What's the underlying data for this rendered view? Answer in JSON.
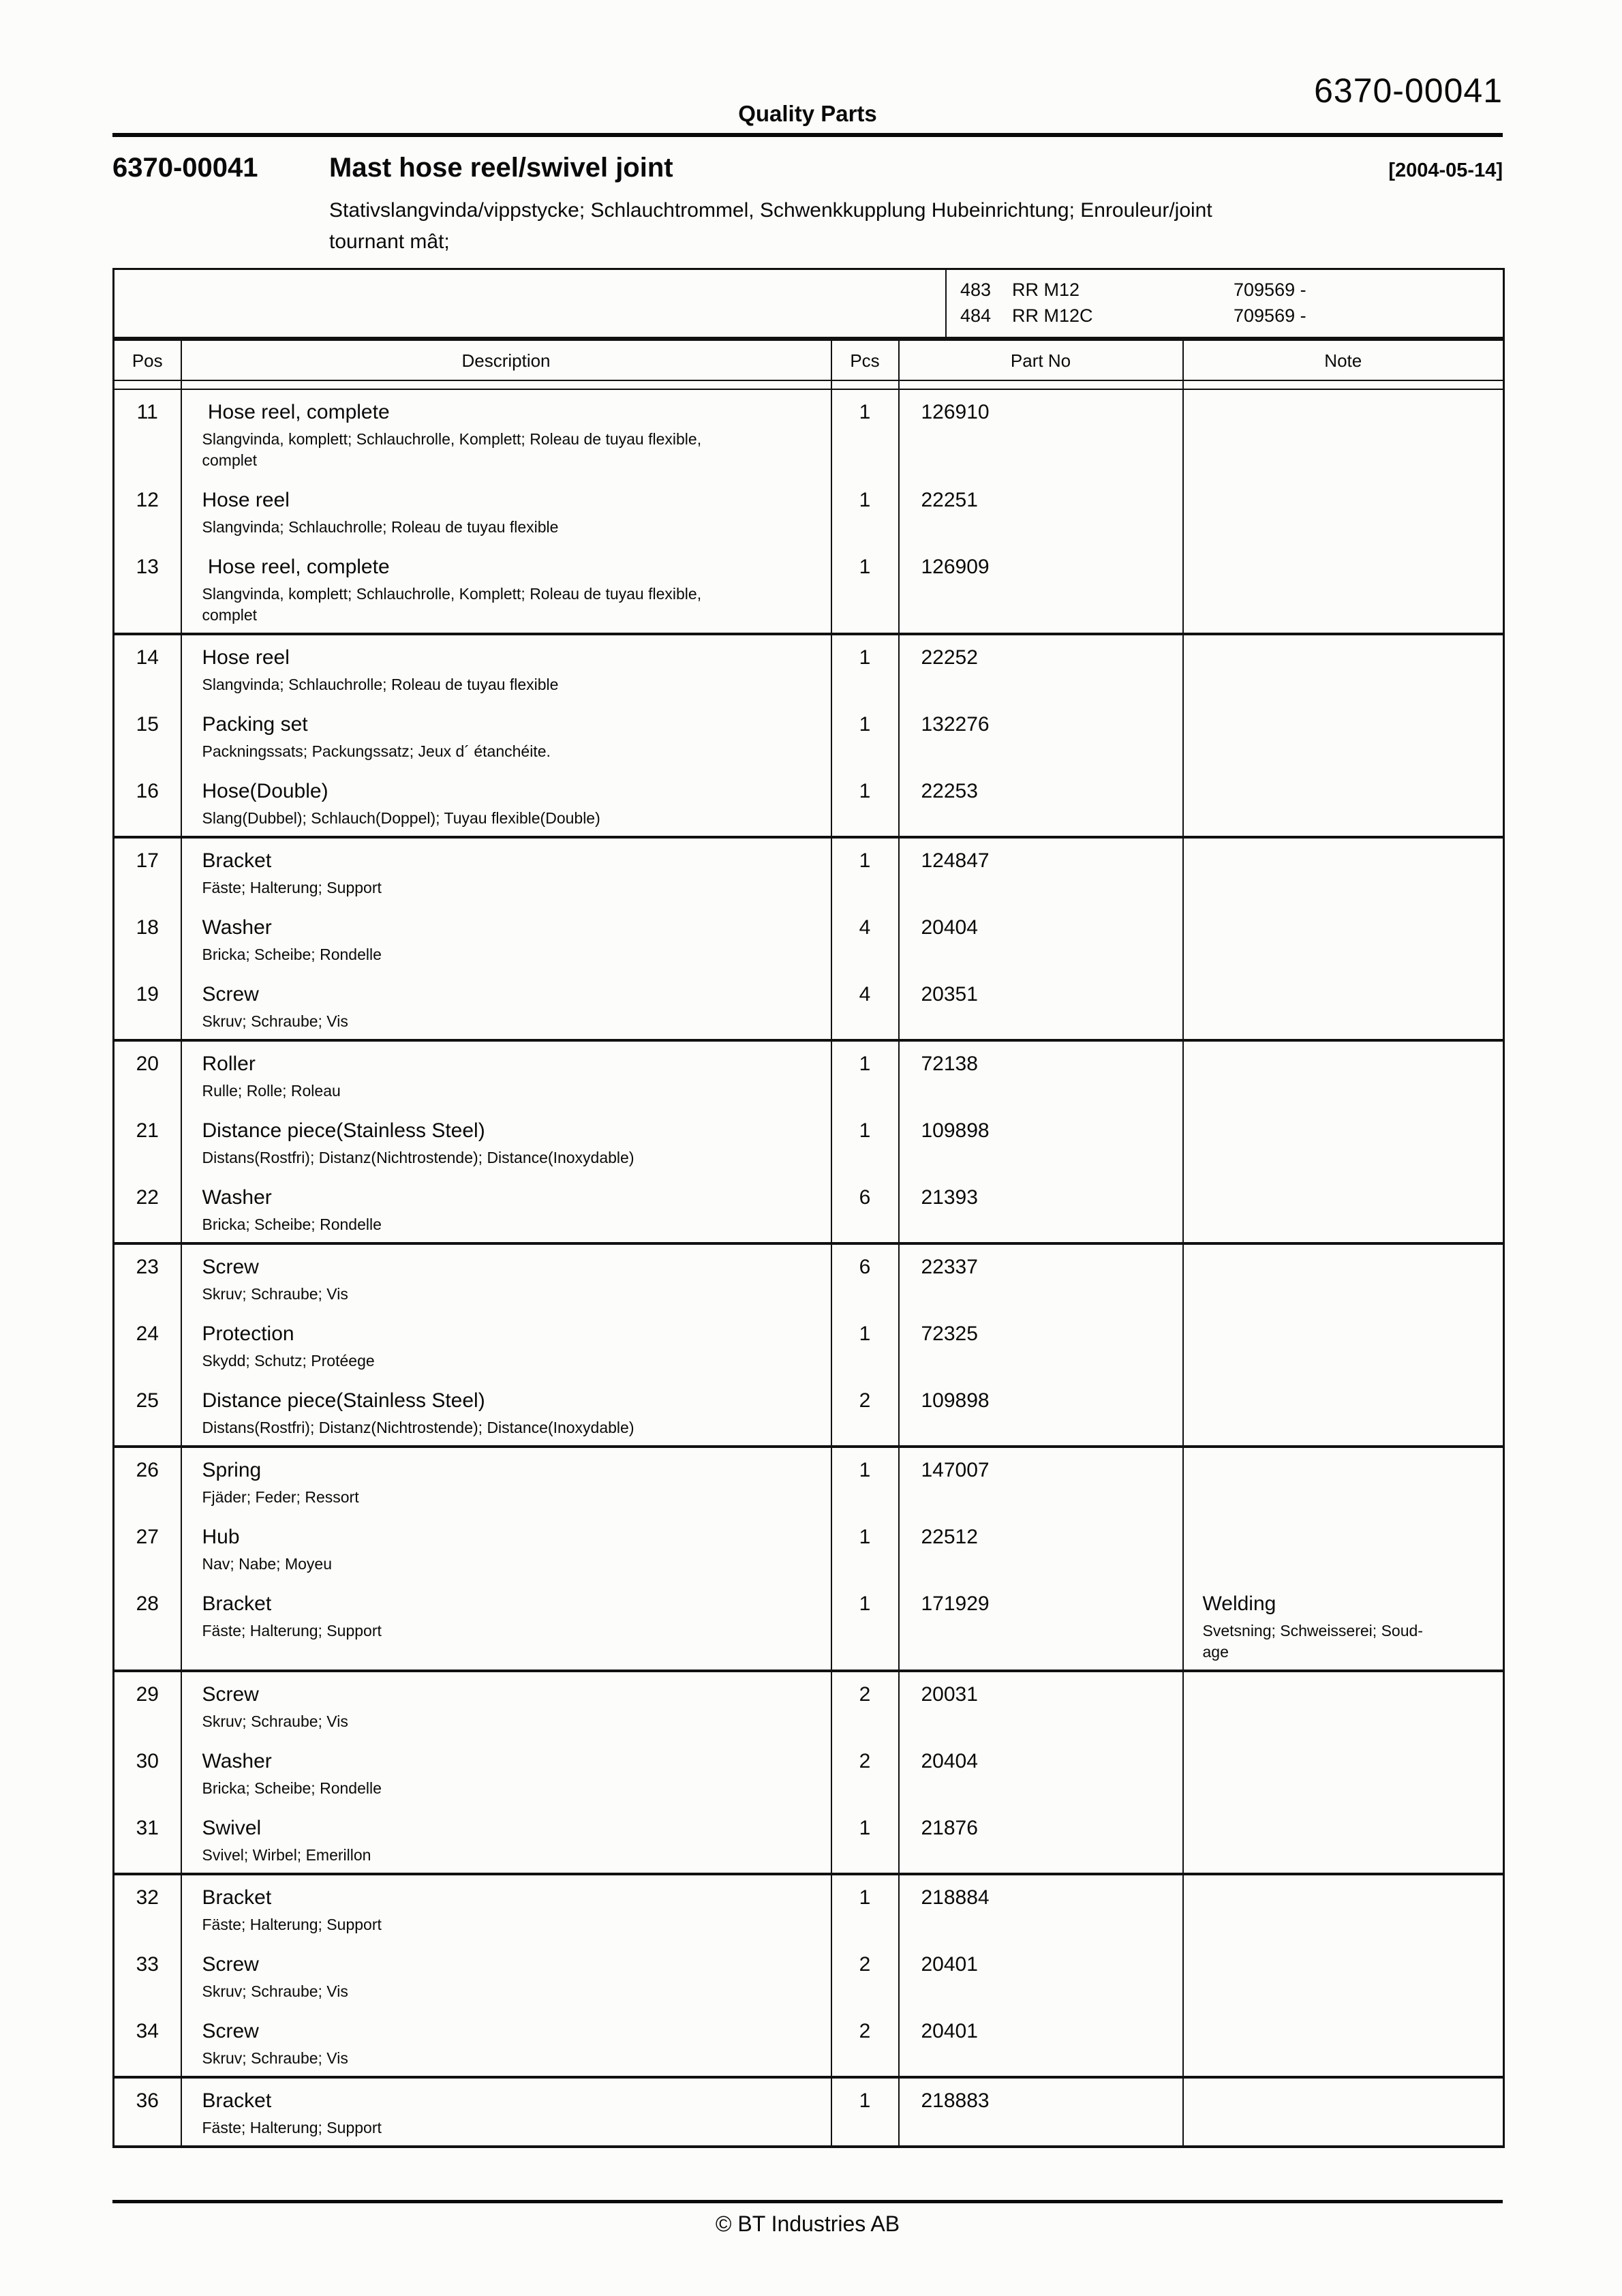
{
  "header": {
    "doc_number_top": "6370-00041",
    "brand": "Quality Parts",
    "doc_number": "6370-00041",
    "title": "Mast hose reel/swivel joint",
    "date": "[2004-05-14]",
    "subtitle": "Stativslangvinda/vippstycke; Schlauchtrommel, Schwenkkupplung Hubeinrichtung; Enrouleur/joint\ntournant mât;"
  },
  "models": [
    {
      "num": "483",
      "model": "RR M12",
      "serial": "709569 -"
    },
    {
      "num": "484",
      "model": "RR M12C",
      "serial": "709569 -"
    }
  ],
  "columns": {
    "pos": "Pos",
    "description": "Description",
    "pcs": "Pcs",
    "part_no": "Part No",
    "note": "Note"
  },
  "rows": [
    {
      "pos": "11",
      "description": " Hose reel, complete",
      "sub": "Slangvinda, komplett; Schlauchrolle, Komplett; Roleau de tuyau flexible,\ncomplet",
      "pcs": "1",
      "part_no": "126910",
      "note": "",
      "note_sub": "",
      "group_end": false
    },
    {
      "pos": "12",
      "description": "Hose reel",
      "sub": "Slangvinda; Schlauchrolle; Roleau de tuyau flexible",
      "pcs": "1",
      "part_no": "22251",
      "note": "",
      "note_sub": "",
      "group_end": false
    },
    {
      "pos": "13",
      "description": " Hose reel, complete",
      "sub": "Slangvinda, komplett; Schlauchrolle, Komplett; Roleau de tuyau flexible,\ncomplet",
      "pcs": "1",
      "part_no": "126909",
      "note": "",
      "note_sub": "",
      "group_end": true
    },
    {
      "pos": "14",
      "description": "Hose reel",
      "sub": "Slangvinda; Schlauchrolle; Roleau de tuyau flexible",
      "pcs": "1",
      "part_no": "22252",
      "note": "",
      "note_sub": "",
      "group_end": false
    },
    {
      "pos": "15",
      "description": "Packing set",
      "sub": "Packningssats; Packungssatz; Jeux d´ étanchéite.",
      "pcs": "1",
      "part_no": "132276",
      "note": "",
      "note_sub": "",
      "group_end": false
    },
    {
      "pos": "16",
      "description": "Hose(Double)",
      "sub": "Slang(Dubbel); Schlauch(Doppel); Tuyau flexible(Double)",
      "pcs": "1",
      "part_no": "22253",
      "note": "",
      "note_sub": "",
      "group_end": true
    },
    {
      "pos": "17",
      "description": "Bracket",
      "sub": "Fäste; Halterung; Support",
      "pcs": "1",
      "part_no": "124847",
      "note": "",
      "note_sub": "",
      "group_end": false
    },
    {
      "pos": "18",
      "description": "Washer",
      "sub": "Bricka; Scheibe; Rondelle",
      "pcs": "4",
      "part_no": "20404",
      "note": "",
      "note_sub": "",
      "group_end": false
    },
    {
      "pos": "19",
      "description": "Screw",
      "sub": "Skruv; Schraube; Vis",
      "pcs": "4",
      "part_no": "20351",
      "note": "",
      "note_sub": "",
      "group_end": true
    },
    {
      "pos": "20",
      "description": "Roller",
      "sub": "Rulle; Rolle; Roleau",
      "pcs": "1",
      "part_no": "72138",
      "note": "",
      "note_sub": "",
      "group_end": false
    },
    {
      "pos": "21",
      "description": "Distance piece(Stainless Steel)",
      "sub": "Distans(Rostfri); Distanz(Nichtrostende); Distance(Inoxydable)",
      "pcs": "1",
      "part_no": "109898",
      "note": "",
      "note_sub": "",
      "group_end": false
    },
    {
      "pos": "22",
      "description": "Washer",
      "sub": "Bricka; Scheibe; Rondelle",
      "pcs": "6",
      "part_no": "21393",
      "note": "",
      "note_sub": "",
      "group_end": true
    },
    {
      "pos": "23",
      "description": "Screw",
      "sub": "Skruv; Schraube; Vis",
      "pcs": "6",
      "part_no": "22337",
      "note": "",
      "note_sub": "",
      "group_end": false
    },
    {
      "pos": "24",
      "description": "Protection",
      "sub": "Skydd; Schutz; Protéege",
      "pcs": "1",
      "part_no": "72325",
      "note": "",
      "note_sub": "",
      "group_end": false
    },
    {
      "pos": "25",
      "description": "Distance piece(Stainless Steel)",
      "sub": "Distans(Rostfri); Distanz(Nichtrostende); Distance(Inoxydable)",
      "pcs": "2",
      "part_no": "109898",
      "note": "",
      "note_sub": "",
      "group_end": true
    },
    {
      "pos": "26",
      "description": "Spring",
      "sub": "Fjäder; Feder; Ressort",
      "pcs": "1",
      "part_no": "147007",
      "note": "",
      "note_sub": "",
      "group_end": false
    },
    {
      "pos": "27",
      "description": "Hub",
      "sub": "Nav; Nabe; Moyeu",
      "pcs": "1",
      "part_no": "22512",
      "note": "",
      "note_sub": "",
      "group_end": false
    },
    {
      "pos": "28",
      "description": "Bracket",
      "sub": "Fäste; Halterung; Support",
      "pcs": "1",
      "part_no": "171929",
      "note": "Welding",
      "note_sub": "Svetsning; Schweisserei; Soud-\nage",
      "group_end": true
    },
    {
      "pos": "29",
      "description": "Screw",
      "sub": "Skruv; Schraube; Vis",
      "pcs": "2",
      "part_no": "20031",
      "note": "",
      "note_sub": "",
      "group_end": false
    },
    {
      "pos": "30",
      "description": "Washer",
      "sub": "Bricka; Scheibe; Rondelle",
      "pcs": "2",
      "part_no": "20404",
      "note": "",
      "note_sub": "",
      "group_end": false
    },
    {
      "pos": "31",
      "description": "Swivel",
      "sub": "Svivel; Wirbel; Emerillon",
      "pcs": "1",
      "part_no": "21876",
      "note": "",
      "note_sub": "",
      "group_end": true
    },
    {
      "pos": "32",
      "description": "Bracket",
      "sub": "Fäste; Halterung; Support",
      "pcs": "1",
      "part_no": "218884",
      "note": "",
      "note_sub": "",
      "group_end": false
    },
    {
      "pos": "33",
      "description": "Screw",
      "sub": "Skruv; Schraube; Vis",
      "pcs": "2",
      "part_no": "20401",
      "note": "",
      "note_sub": "",
      "group_end": false
    },
    {
      "pos": "34",
      "description": "Screw",
      "sub": "Skruv; Schraube; Vis",
      "pcs": "2",
      "part_no": "20401",
      "note": "",
      "note_sub": "",
      "group_end": true
    },
    {
      "pos": "36",
      "description": "Bracket",
      "sub": "Fäste; Halterung; Support",
      "pcs": "1",
      "part_no": "218883",
      "note": "",
      "note_sub": "",
      "group_end": true
    }
  ],
  "footer": {
    "copyright": "© BT Industries AB"
  }
}
